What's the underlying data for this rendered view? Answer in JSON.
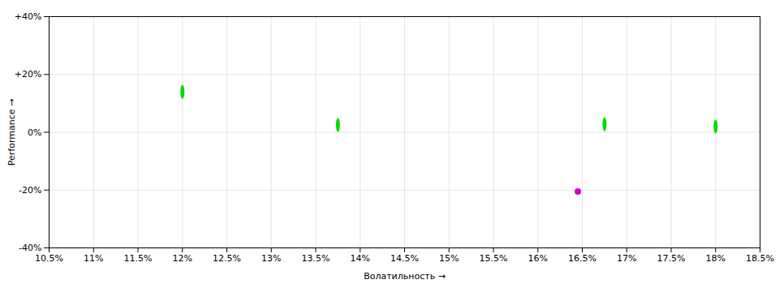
{
  "chart_data": {
    "type": "scatter",
    "xlabel": "Волатильность",
    "ylabel": "Performance",
    "xlim": [
      0.105,
      0.185
    ],
    "ylim": [
      -0.4,
      0.4
    ],
    "xticks": [
      {
        "value": 0.105,
        "label": "10.5%"
      },
      {
        "value": 0.11,
        "label": "11%"
      },
      {
        "value": 0.115,
        "label": "11.5%"
      },
      {
        "value": 0.12,
        "label": "12%"
      },
      {
        "value": 0.125,
        "label": "12.5%"
      },
      {
        "value": 0.13,
        "label": "13%"
      },
      {
        "value": 0.135,
        "label": "13.5%"
      },
      {
        "value": 0.14,
        "label": "14%"
      },
      {
        "value": 0.145,
        "label": "14.5%"
      },
      {
        "value": 0.15,
        "label": "15%"
      },
      {
        "value": 0.155,
        "label": "15.5%"
      },
      {
        "value": 0.16,
        "label": "16%"
      },
      {
        "value": 0.165,
        "label": "16.5%"
      },
      {
        "value": 0.17,
        "label": "17%"
      },
      {
        "value": 0.175,
        "label": "17.5%"
      },
      {
        "value": 0.18,
        "label": "18%"
      },
      {
        "value": 0.185,
        "label": "18.5%"
      }
    ],
    "yticks": [
      {
        "value": -0.4,
        "label": "-40%"
      },
      {
        "value": -0.2,
        "label": "-20%"
      },
      {
        "value": 0.0,
        "label": "0%"
      },
      {
        "value": 0.2,
        "label": "+20%"
      },
      {
        "value": 0.4,
        "label": "+40%"
      }
    ],
    "grid": true,
    "series": [
      {
        "color": "#00dd00",
        "marker": "ellipse",
        "x": [
          0.12,
          0.1375,
          0.1675,
          0.18
        ],
        "values": [
          0.14,
          0.025,
          0.028,
          0.02
        ]
      },
      {
        "color": "#cc00cc",
        "marker": "circle",
        "x": [
          0.1645
        ],
        "values": [
          -0.205
        ]
      }
    ]
  }
}
